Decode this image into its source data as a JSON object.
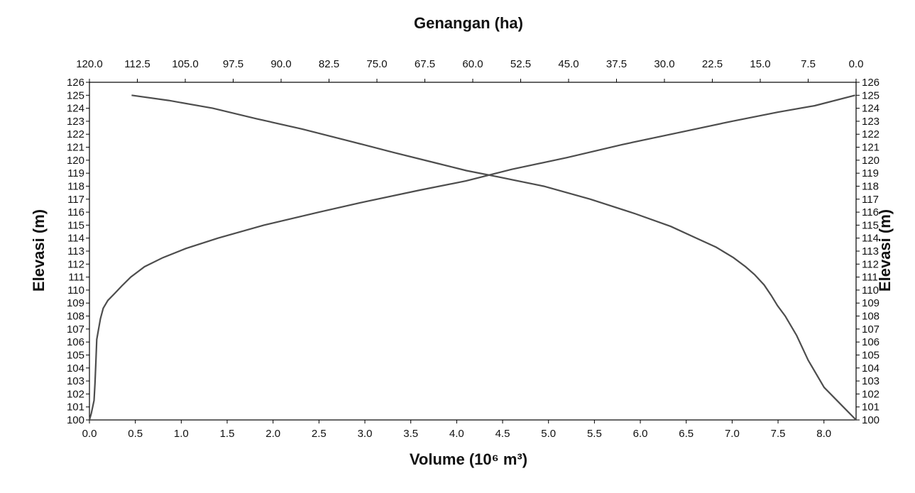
{
  "chart_data": {
    "type": "line",
    "title": "",
    "xlabel_top": "Genangan (ha)",
    "xlabel_bottom": "Volume (10⁶ m³)",
    "ylabel_left": "Elevasi (m)",
    "ylabel_right": "Elevasi (m)",
    "x_bottom": {
      "lim": [
        0,
        8.35
      ],
      "ticks": [
        "0.0",
        "0.5",
        "1.0",
        "1.5",
        "2.0",
        "2.5",
        "3.0",
        "3.5",
        "4.0",
        "4.5",
        "5.0",
        "5.5",
        "6.0",
        "6.5",
        "7.0",
        "7.5",
        "8.0"
      ],
      "tick_values": [
        0,
        0.5,
        1,
        1.5,
        2,
        2.5,
        3,
        3.5,
        4,
        4.5,
        5,
        5.5,
        6,
        6.5,
        7,
        7.5,
        8
      ]
    },
    "x_top": {
      "lim": [
        120,
        0
      ],
      "reversed": true,
      "ticks": [
        "120.0",
        "112.5",
        "105.0",
        "97.5",
        "90.0",
        "82.5",
        "75.0",
        "67.5",
        "60.0",
        "52.5",
        "45.0",
        "37.5",
        "30.0",
        "22.5",
        "15.0",
        "7.5",
        "0.0"
      ],
      "tick_values": [
        120,
        112.5,
        105,
        97.5,
        90,
        82.5,
        75,
        67.5,
        60,
        52.5,
        45,
        37.5,
        30,
        22.5,
        15,
        7.5,
        0
      ]
    },
    "y": {
      "lim": [
        100,
        126
      ],
      "ticks": [
        "100",
        "101",
        "102",
        "103",
        "104",
        "105",
        "106",
        "107",
        "108",
        "109",
        "110",
        "111",
        "112",
        "113",
        "114",
        "115",
        "116",
        "117",
        "118",
        "119",
        "120",
        "121",
        "122",
        "123",
        "124",
        "125",
        "126"
      ],
      "tick_values": [
        100,
        101,
        102,
        103,
        104,
        105,
        106,
        107,
        108,
        109,
        110,
        111,
        112,
        113,
        114,
        115,
        116,
        117,
        118,
        119,
        120,
        121,
        122,
        123,
        124,
        125,
        126
      ]
    },
    "grid": false,
    "legend": "none",
    "line_color": "#4d4d4d",
    "series": [
      {
        "axis": "bottom",
        "x": [
          0,
          0.02,
          0.05,
          0.06,
          0.07,
          0.08,
          0.1,
          0.12,
          0.15,
          0.2,
          0.27,
          0.35,
          0.45,
          0.6,
          0.8,
          1.05,
          1.4,
          1.9,
          2.5,
          3.0,
          3.6,
          4.1,
          4.6,
          5.2,
          5.8,
          6.4,
          7.0,
          7.5,
          7.9,
          8.34
        ],
        "y": [
          100,
          100.5,
          101.5,
          102.8,
          104.5,
          106.2,
          107,
          107.8,
          108.6,
          109.2,
          109.7,
          110.3,
          111,
          111.8,
          112.5,
          113.2,
          114,
          115,
          116,
          116.8,
          117.7,
          118.4,
          119.3,
          120.2,
          121.2,
          122.1,
          123,
          123.7,
          124.2,
          125
        ]
      },
      {
        "axis": "top",
        "x": [
          0,
          2,
          5,
          7.5,
          9.3,
          11.1,
          12.3,
          13.3,
          14.4,
          15.9,
          17.3,
          19.2,
          21.9,
          25,
          29,
          34.7,
          41.6,
          48.9,
          55.9,
          61,
          65.9,
          72.4,
          79.5,
          86.7,
          93.9,
          100.7,
          107.6,
          113.4
        ],
        "y": [
          100,
          101,
          102.5,
          104.6,
          106.5,
          108,
          108.8,
          109.6,
          110.4,
          111.2,
          111.8,
          112.5,
          113.3,
          114,
          114.9,
          115.9,
          117,
          118,
          118.7,
          119.2,
          119.8,
          120.6,
          121.5,
          122.4,
          123.2,
          124,
          124.6,
          125
        ]
      }
    ]
  }
}
